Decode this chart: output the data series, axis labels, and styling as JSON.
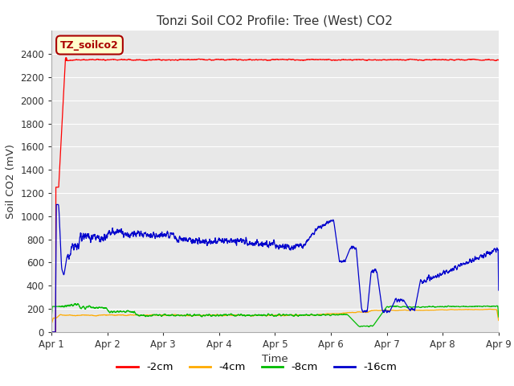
{
  "title": "Tonzi Soil CO2 Profile: Tree (West) CO2",
  "ylabel": "Soil CO2 (mV)",
  "xlabel": "Time",
  "ylim": [
    0,
    2600
  ],
  "xlim": [
    0,
    8
  ],
  "xtick_labels": [
    "Apr 1",
    "Apr 2",
    "Apr 3",
    "Apr 4",
    "Apr 5",
    "Apr 6",
    "Apr 7",
    "Apr 8",
    "Apr 9"
  ],
  "ytick_values": [
    0,
    200,
    400,
    600,
    800,
    1000,
    1200,
    1400,
    1600,
    1800,
    2000,
    2200,
    2400
  ],
  "annotation": "TZ_soilco2",
  "series_colors": [
    "#ff0000",
    "#ffaa00",
    "#00bb00",
    "#0000cc"
  ],
  "series_labels": [
    "-2cm",
    "-4cm",
    "-8cm",
    "-16cm"
  ],
  "background_color": "#e8e8e8",
  "fig_background": "#ffffff",
  "title_color": "#333333",
  "grid_color": "#ffffff",
  "annotation_facecolor": "#ffffcc",
  "annotation_edgecolor": "#aa0000",
  "annotation_textcolor": "#aa0000"
}
